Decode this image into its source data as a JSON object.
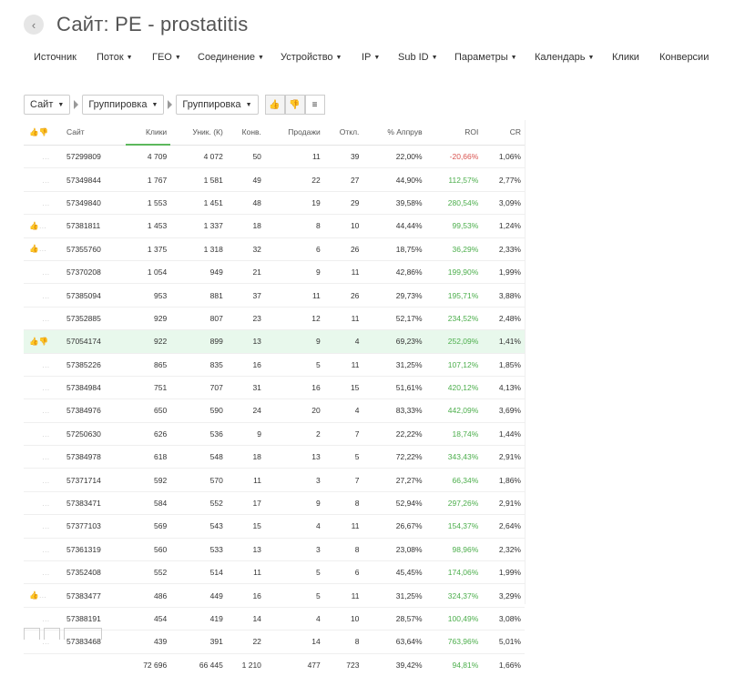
{
  "header": {
    "title": "Сайт: PE - prostatitis",
    "back_icon": "‹"
  },
  "nav": [
    {
      "label": "Источник",
      "caret": false
    },
    {
      "label": "Поток",
      "caret": true
    },
    {
      "label": "ГЕО",
      "caret": true
    },
    {
      "label": "Соединение",
      "caret": true
    },
    {
      "label": "Устройство",
      "caret": true
    },
    {
      "label": "IP",
      "caret": true
    },
    {
      "label": "Sub ID",
      "caret": true
    },
    {
      "label": "Параметры",
      "caret": true
    },
    {
      "label": "Календарь",
      "caret": true
    },
    {
      "label": "Клики",
      "caret": false
    },
    {
      "label": "Конверсии",
      "caret": false
    }
  ],
  "toolbar": {
    "group1": "Сайт",
    "group2": "Группировка",
    "group3": "Группировка"
  },
  "table": {
    "columns": [
      "Сайт",
      "Клики",
      "Уник. (К)",
      "Конв.",
      "Продажи",
      "Откл.",
      "% Аппрув",
      "ROI",
      "CR"
    ],
    "rows": [
      {
        "site": "57299809",
        "clicks": "4 709",
        "uniq": "4 072",
        "conv": "50",
        "sales": "11",
        "rej": "39",
        "approve": "22,00%",
        "roi": "-20,66%",
        "cr": "1,06%",
        "thumb": "none",
        "hl": false
      },
      {
        "site": "57349844",
        "clicks": "1 767",
        "uniq": "1 581",
        "conv": "49",
        "sales": "22",
        "rej": "27",
        "approve": "44,90%",
        "roi": "112,57%",
        "cr": "2,77%",
        "thumb": "none",
        "hl": false
      },
      {
        "site": "57349840",
        "clicks": "1 553",
        "uniq": "1 451",
        "conv": "48",
        "sales": "19",
        "rej": "29",
        "approve": "39,58%",
        "roi": "280,54%",
        "cr": "3,09%",
        "thumb": "none",
        "hl": false
      },
      {
        "site": "57381811",
        "clicks": "1 453",
        "uniq": "1 337",
        "conv": "18",
        "sales": "8",
        "rej": "10",
        "approve": "44,44%",
        "roi": "99,53%",
        "cr": "1,24%",
        "thumb": "up",
        "hl": false
      },
      {
        "site": "57355760",
        "clicks": "1 375",
        "uniq": "1 318",
        "conv": "32",
        "sales": "6",
        "rej": "26",
        "approve": "18,75%",
        "roi": "36,29%",
        "cr": "2,33%",
        "thumb": "up",
        "hl": false
      },
      {
        "site": "57370208",
        "clicks": "1 054",
        "uniq": "949",
        "conv": "21",
        "sales": "9",
        "rej": "11",
        "approve": "42,86%",
        "roi": "199,90%",
        "cr": "1,99%",
        "thumb": "none",
        "hl": false
      },
      {
        "site": "57385094",
        "clicks": "953",
        "uniq": "881",
        "conv": "37",
        "sales": "11",
        "rej": "26",
        "approve": "29,73%",
        "roi": "195,71%",
        "cr": "3,88%",
        "thumb": "none",
        "hl": false
      },
      {
        "site": "57352885",
        "clicks": "929",
        "uniq": "807",
        "conv": "23",
        "sales": "12",
        "rej": "11",
        "approve": "52,17%",
        "roi": "234,52%",
        "cr": "2,48%",
        "thumb": "none",
        "hl": false
      },
      {
        "site": "57054174",
        "clicks": "922",
        "uniq": "899",
        "conv": "13",
        "sales": "9",
        "rej": "4",
        "approve": "69,23%",
        "roi": "252,09%",
        "cr": "1,41%",
        "thumb": "both",
        "hl": true
      },
      {
        "site": "57385226",
        "clicks": "865",
        "uniq": "835",
        "conv": "16",
        "sales": "5",
        "rej": "11",
        "approve": "31,25%",
        "roi": "107,12%",
        "cr": "1,85%",
        "thumb": "none",
        "hl": false
      },
      {
        "site": "57384984",
        "clicks": "751",
        "uniq": "707",
        "conv": "31",
        "sales": "16",
        "rej": "15",
        "approve": "51,61%",
        "roi": "420,12%",
        "cr": "4,13%",
        "thumb": "none",
        "hl": false
      },
      {
        "site": "57384976",
        "clicks": "650",
        "uniq": "590",
        "conv": "24",
        "sales": "20",
        "rej": "4",
        "approve": "83,33%",
        "roi": "442,09%",
        "cr": "3,69%",
        "thumb": "none",
        "hl": false
      },
      {
        "site": "57250630",
        "clicks": "626",
        "uniq": "536",
        "conv": "9",
        "sales": "2",
        "rej": "7",
        "approve": "22,22%",
        "roi": "18,74%",
        "cr": "1,44%",
        "thumb": "none",
        "hl": false
      },
      {
        "site": "57384978",
        "clicks": "618",
        "uniq": "548",
        "conv": "18",
        "sales": "13",
        "rej": "5",
        "approve": "72,22%",
        "roi": "343,43%",
        "cr": "2,91%",
        "thumb": "none",
        "hl": false
      },
      {
        "site": "57371714",
        "clicks": "592",
        "uniq": "570",
        "conv": "11",
        "sales": "3",
        "rej": "7",
        "approve": "27,27%",
        "roi": "66,34%",
        "cr": "1,86%",
        "thumb": "none",
        "hl": false
      },
      {
        "site": "57383471",
        "clicks": "584",
        "uniq": "552",
        "conv": "17",
        "sales": "9",
        "rej": "8",
        "approve": "52,94%",
        "roi": "297,26%",
        "cr": "2,91%",
        "thumb": "none",
        "hl": false
      },
      {
        "site": "57377103",
        "clicks": "569",
        "uniq": "543",
        "conv": "15",
        "sales": "4",
        "rej": "11",
        "approve": "26,67%",
        "roi": "154,37%",
        "cr": "2,64%",
        "thumb": "none",
        "hl": false
      },
      {
        "site": "57361319",
        "clicks": "560",
        "uniq": "533",
        "conv": "13",
        "sales": "3",
        "rej": "8",
        "approve": "23,08%",
        "roi": "98,96%",
        "cr": "2,32%",
        "thumb": "none",
        "hl": false
      },
      {
        "site": "57352408",
        "clicks": "552",
        "uniq": "514",
        "conv": "11",
        "sales": "5",
        "rej": "6",
        "approve": "45,45%",
        "roi": "174,06%",
        "cr": "1,99%",
        "thumb": "none",
        "hl": false
      },
      {
        "site": "57383477",
        "clicks": "486",
        "uniq": "449",
        "conv": "16",
        "sales": "5",
        "rej": "11",
        "approve": "31,25%",
        "roi": "324,37%",
        "cr": "3,29%",
        "thumb": "up",
        "hl": false
      },
      {
        "site": "57388191",
        "clicks": "454",
        "uniq": "419",
        "conv": "14",
        "sales": "4",
        "rej": "10",
        "approve": "28,57%",
        "roi": "100,49%",
        "cr": "3,08%",
        "thumb": "none",
        "hl": false
      },
      {
        "site": "57383468",
        "clicks": "439",
        "uniq": "391",
        "conv": "22",
        "sales": "14",
        "rej": "8",
        "approve": "63,64%",
        "roi": "763,96%",
        "cr": "5,01%",
        "thumb": "none",
        "hl": false
      }
    ],
    "totals": {
      "clicks": "72 696",
      "uniq": "66 445",
      "conv": "1 210",
      "sales": "477",
      "rej": "723",
      "approve": "39,42%",
      "roi": "94,81%",
      "cr": "1,66%"
    }
  },
  "colors": {
    "positive": "#4cae4c",
    "negative": "#d9534f",
    "highlight_row": "#e8f8ec",
    "accent": "#5cb85c"
  }
}
